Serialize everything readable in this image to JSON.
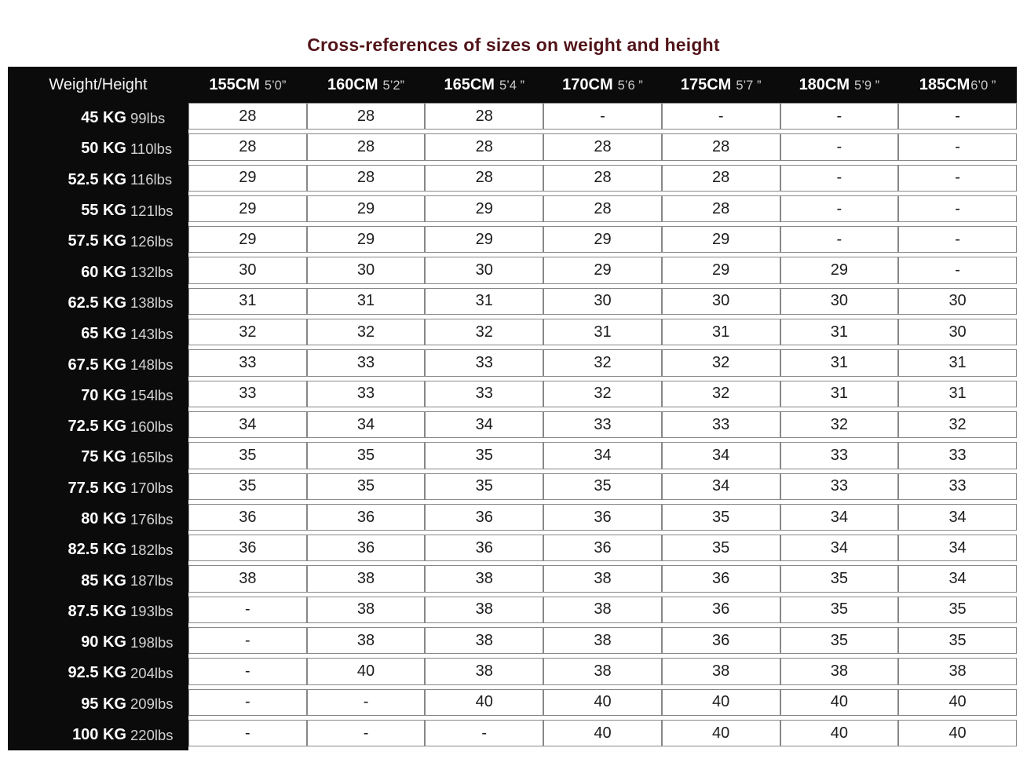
{
  "title": "Cross-references of sizes on weight and height",
  "colors": {
    "title_text": "#521419",
    "header_bg": "#0b0b0b",
    "cell_bg": "#ffffff",
    "cell_border": "#888888",
    "kg_text": "#ffffff",
    "lbs_text": "#d2d2d2",
    "value_text": "#1d1d1d"
  },
  "chart_data": {
    "type": "table",
    "title": "Cross-references of sizes on weight and height",
    "corner_header": "Weight/Height",
    "columns": [
      {
        "cm": "155CM",
        "ft": "5’0”"
      },
      {
        "cm": "160CM",
        "ft": "5’2”"
      },
      {
        "cm": "165CM",
        "ft": "5’4 ”"
      },
      {
        "cm": "170CM",
        "ft": "5’6 ”"
      },
      {
        "cm": "175CM",
        "ft": "5’7 ”"
      },
      {
        "cm": "180CM",
        "ft": "5’9 ”"
      },
      {
        "cm": "185CM",
        "ft": "6’0 ”"
      }
    ],
    "rows": [
      {
        "kg": "45 KG",
        "lbs": "99lbs",
        "values": [
          "28",
          "28",
          "28",
          "-",
          "-",
          "-",
          "-"
        ]
      },
      {
        "kg": "50 KG",
        "lbs": "110lbs",
        "values": [
          "28",
          "28",
          "28",
          "28",
          "28",
          "-",
          "-"
        ]
      },
      {
        "kg": "52.5 KG",
        "lbs": "116lbs",
        "values": [
          "29",
          "28",
          "28",
          "28",
          "28",
          "-",
          "-"
        ]
      },
      {
        "kg": "55 KG",
        "lbs": "121lbs",
        "values": [
          "29",
          "29",
          "29",
          "28",
          "28",
          "-",
          "-"
        ]
      },
      {
        "kg": "57.5 KG",
        "lbs": "126lbs",
        "values": [
          "29",
          "29",
          "29",
          "29",
          "29",
          "-",
          "-"
        ]
      },
      {
        "kg": "60 KG",
        "lbs": "132lbs",
        "values": [
          "30",
          "30",
          "30",
          "29",
          "29",
          "29",
          "-"
        ]
      },
      {
        "kg": "62.5 KG",
        "lbs": "138lbs",
        "values": [
          "31",
          "31",
          "31",
          "30",
          "30",
          "30",
          "30"
        ]
      },
      {
        "kg": "65 KG",
        "lbs": "143lbs",
        "values": [
          "32",
          "32",
          "32",
          "31",
          "31",
          "31",
          "30"
        ]
      },
      {
        "kg": "67.5 KG",
        "lbs": "148lbs",
        "values": [
          "33",
          "33",
          "33",
          "32",
          "32",
          "31",
          "31"
        ]
      },
      {
        "kg": "70 KG",
        "lbs": "154lbs",
        "values": [
          "33",
          "33",
          "33",
          "32",
          "32",
          "31",
          "31"
        ]
      },
      {
        "kg": "72.5 KG",
        "lbs": "160lbs",
        "values": [
          "34",
          "34",
          "34",
          "33",
          "33",
          "32",
          "32"
        ]
      },
      {
        "kg": "75 KG",
        "lbs": "165lbs",
        "values": [
          "35",
          "35",
          "35",
          "34",
          "34",
          "33",
          "33"
        ]
      },
      {
        "kg": "77.5 KG",
        "lbs": "170lbs",
        "values": [
          "35",
          "35",
          "35",
          "35",
          "34",
          "33",
          "33"
        ]
      },
      {
        "kg": "80 KG",
        "lbs": "176lbs",
        "values": [
          "36",
          "36",
          "36",
          "36",
          "35",
          "34",
          "34"
        ]
      },
      {
        "kg": "82.5 KG",
        "lbs": "182lbs",
        "values": [
          "36",
          "36",
          "36",
          "36",
          "35",
          "34",
          "34"
        ]
      },
      {
        "kg": "85 KG",
        "lbs": "187lbs",
        "values": [
          "38",
          "38",
          "38",
          "38",
          "36",
          "35",
          "34"
        ]
      },
      {
        "kg": "87.5 KG",
        "lbs": "193lbs",
        "values": [
          "-",
          "38",
          "38",
          "38",
          "36",
          "35",
          "35"
        ]
      },
      {
        "kg": "90 KG",
        "lbs": "198lbs",
        "values": [
          "-",
          "38",
          "38",
          "38",
          "36",
          "35",
          "35"
        ]
      },
      {
        "kg": "92.5 KG",
        "lbs": "204lbs",
        "values": [
          "-",
          "40",
          "38",
          "38",
          "38",
          "38",
          "38"
        ]
      },
      {
        "kg": "95 KG",
        "lbs": "209lbs",
        "values": [
          "-",
          "-",
          "40",
          "40",
          "40",
          "40",
          "40"
        ]
      },
      {
        "kg": "100 KG",
        "lbs": "220lbs",
        "values": [
          "-",
          "-",
          "-",
          "40",
          "40",
          "40",
          "40"
        ]
      }
    ]
  }
}
